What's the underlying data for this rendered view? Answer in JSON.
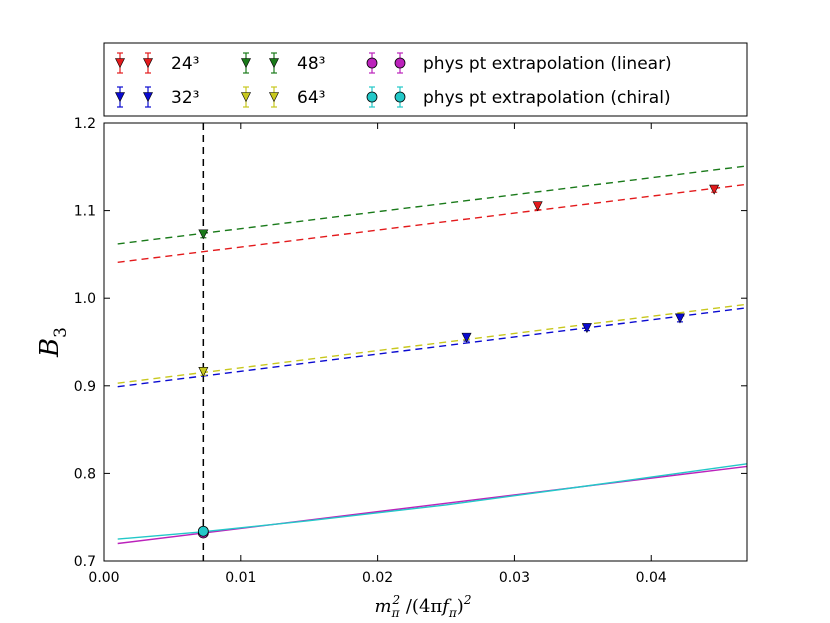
{
  "chart_data": {
    "type": "scatter",
    "title": "",
    "xlabel": "m_π² /(4πf_π)²",
    "ylabel": "B₃",
    "xlim": [
      0.0,
      0.047
    ],
    "ylim": [
      0.7,
      1.2
    ],
    "xticks": [
      "0.00",
      "0.01",
      "0.02",
      "0.03",
      "0.04"
    ],
    "yticks": [
      "0.7",
      "0.8",
      "0.9",
      "1.0",
      "1.1",
      "1.2"
    ],
    "physical_point_x": 0.00726,
    "legend_position": "top (above plot)",
    "grid": false,
    "series": [
      {
        "name": "24³",
        "marker": "triangle-down",
        "color": "#e31a1c",
        "points": [
          {
            "x": 0.0317,
            "y": 1.105,
            "err": 0.004
          },
          {
            "x": 0.0446,
            "y": 1.124,
            "err": 0.003
          }
        ],
        "fit": {
          "style": "dashed",
          "x": [
            0.001,
            0.047
          ],
          "y": [
            1.041,
            1.13
          ]
        }
      },
      {
        "name": "32³",
        "marker": "triangle-down",
        "color": "#0a0ad0",
        "points": [
          {
            "x": 0.0265,
            "y": 0.955,
            "err": 0.004
          },
          {
            "x": 0.0353,
            "y": 0.966,
            "err": 0.003
          },
          {
            "x": 0.0421,
            "y": 0.977,
            "err": 0.004
          }
        ],
        "fit": {
          "style": "dashed",
          "x": [
            0.001,
            0.047
          ],
          "y": [
            0.899,
            0.989
          ]
        }
      },
      {
        "name": "48³",
        "marker": "triangle-down",
        "color": "#1a7a1a",
        "points": [
          {
            "x": 0.00726,
            "y": 1.073,
            "err": 0.004
          }
        ],
        "fit": {
          "style": "dashed",
          "x": [
            0.001,
            0.047
          ],
          "y": [
            1.062,
            1.151
          ]
        }
      },
      {
        "name": "64³",
        "marker": "triangle-down",
        "color": "#c8c81e",
        "points": [
          {
            "x": 0.00726,
            "y": 0.916,
            "err": 0.004
          }
        ],
        "fit": {
          "style": "dashed",
          "x": [
            0.001,
            0.047
          ],
          "y": [
            0.903,
            0.993
          ]
        }
      },
      {
        "name": "phys pt extrapolation (linear)",
        "marker": "circle",
        "color": "#bb22bb",
        "points": [
          {
            "x": 0.00726,
            "y": 0.732,
            "err": 0.004
          }
        ],
        "fit": {
          "style": "solid",
          "x": [
            0.001,
            0.047
          ],
          "y": [
            0.72,
            0.808
          ]
        }
      },
      {
        "name": "phys pt extrapolation (chiral)",
        "marker": "circle",
        "color": "#22c8c8",
        "points": [
          {
            "x": 0.00726,
            "y": 0.734,
            "err": 0.004
          }
        ],
        "fit": {
          "style": "solid",
          "x": [
            0.001,
            0.007,
            0.015,
            0.025,
            0.035,
            0.047
          ],
          "y": [
            0.725,
            0.733,
            0.746,
            0.764,
            0.785,
            0.811
          ]
        }
      }
    ]
  }
}
